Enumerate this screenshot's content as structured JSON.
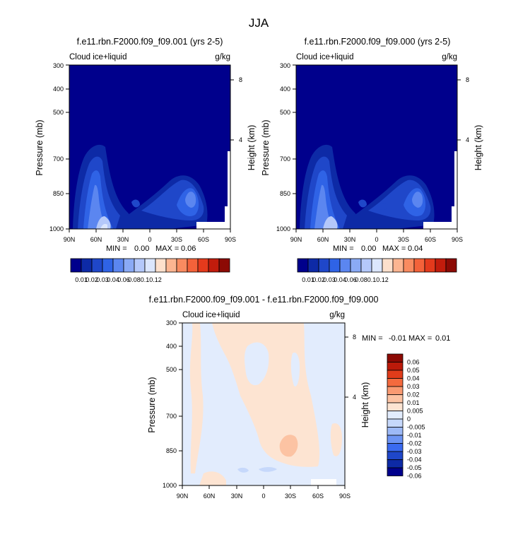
{
  "figure_title": "JJA",
  "colors": {
    "cmap": [
      "#00008c",
      "#0d2aa6",
      "#1f47c9",
      "#2f63e6",
      "#5b86f0",
      "#8aaaf5",
      "#b4c8fa",
      "#dbe6fd",
      "#fde0cc",
      "#fcb591",
      "#f98b60",
      "#f4623a",
      "#e43a1c",
      "#c21c0c",
      "#8c0a04"
    ],
    "diff_cmap": [
      "#00008c",
      "#0d2aa6",
      "#1f47c9",
      "#3a6af0",
      "#6d94f4",
      "#9db9f7",
      "#c6d8fb",
      "#e2ecfd",
      "#fde4d2",
      "#fcc3a3",
      "#f99a72",
      "#f46a3e",
      "#e03c1a",
      "#bb1a0a",
      "#8c0a04"
    ]
  },
  "chart_data": [
    {
      "type": "heatmap",
      "title": "f.e11.rbn.F2000.f09_f09.001 (yrs 2-5)",
      "left_label": "Cloud ice+liquid",
      "right_label": "g/kg",
      "xlabel": "",
      "ylabel": "Pressure (mb)",
      "y2label": "Height (km)",
      "x_ticks": [
        "90N",
        "60N",
        "30N",
        "0",
        "30S",
        "60S",
        "90S"
      ],
      "y_ticks": [
        "300",
        "400",
        "500",
        "700",
        "850",
        "1000"
      ],
      "y2_ticks": [
        "8",
        "4"
      ],
      "stats": {
        "min_label": "MIN =",
        "min": "0.00",
        "max_label": "MAX =",
        "max": "0.06"
      },
      "colorbar": {
        "orientation": "horizontal",
        "labels": [
          "0.01",
          "0.02",
          "0.03",
          "0.04",
          "0.06",
          "0.08",
          "0.1",
          "0.12"
        ]
      }
    },
    {
      "type": "heatmap",
      "title": "f.e11.rbn.F2000.f09_f09.000 (yrs 2-5)",
      "left_label": "Cloud ice+liquid",
      "right_label": "g/kg",
      "xlabel": "",
      "ylabel": "Pressure (mb)",
      "y2label": "Height (km)",
      "x_ticks": [
        "90N",
        "60N",
        "30N",
        "0",
        "30S",
        "60S",
        "90S"
      ],
      "y_ticks": [
        "300",
        "400",
        "500",
        "700",
        "850",
        "1000"
      ],
      "y2_ticks": [
        "8",
        "4"
      ],
      "stats": {
        "min_label": "MIN =",
        "min": "0.00",
        "max_label": "MAX =",
        "max": "0.04"
      },
      "colorbar": {
        "orientation": "horizontal",
        "labels": [
          "0.01",
          "0.02",
          "0.03",
          "0.04",
          "0.06",
          "0.08",
          "0.1",
          "0.12"
        ]
      }
    },
    {
      "type": "heatmap",
      "title": "f.e11.rbn.F2000.f09_f09.001 - f.e11.rbn.F2000.f09_f09.000",
      "left_label": "Cloud ice+liquid",
      "right_label": "g/kg",
      "xlabel": "",
      "ylabel": "Pressure (mb)",
      "y2label": "Height (km)",
      "x_ticks": [
        "90N",
        "60N",
        "30N",
        "0",
        "30S",
        "60S",
        "90S"
      ],
      "y_ticks": [
        "300",
        "400",
        "500",
        "700",
        "850",
        "1000"
      ],
      "y2_ticks": [
        "8",
        "4"
      ],
      "stats": {
        "min_label": "MIN =",
        "min": "-0.01",
        "max_label": "MAX =",
        "max": "0.01"
      },
      "colorbar": {
        "orientation": "vertical",
        "labels": [
          "0.06",
          "0.05",
          "0.04",
          "0.03",
          "0.02",
          "0.01",
          "0.005",
          "0",
          "-0.005",
          "-0.01",
          "-0.02",
          "-0.03",
          "-0.04",
          "-0.05",
          "-0.06"
        ]
      }
    }
  ]
}
